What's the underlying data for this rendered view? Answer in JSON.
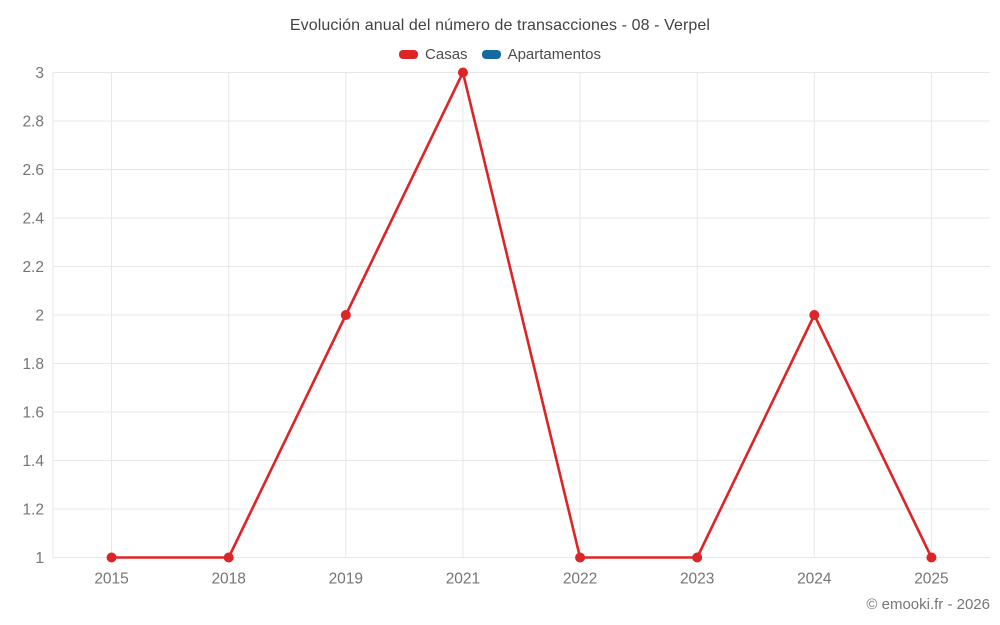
{
  "title": "Evolución anual del número de transacciones - 08 - Verpel",
  "copyright": "© emooki.fr - 2026",
  "colors": {
    "grid": "#e7e7e7",
    "axis_tick_label": "#757575",
    "title_text": "#424242",
    "legend_text": "#4c4c4c",
    "casas_red": "#dd2427",
    "apartamentos_blue": "#17699e"
  },
  "chart_data": {
    "type": "line",
    "title": "Evolución anual del número de transacciones - 08 - Verpel",
    "xlabel": "",
    "ylabel": "",
    "categories": [
      "2015",
      "2018",
      "2019",
      "2021",
      "2022",
      "2023",
      "2024",
      "2025"
    ],
    "series": [
      {
        "name": "Casas",
        "color": "#dd2427",
        "values": [
          1,
          1,
          2,
          3,
          1,
          1,
          2,
          1
        ]
      },
      {
        "name": "Apartamentos",
        "color": "#17699e",
        "values": []
      }
    ],
    "ylim": [
      1,
      3
    ],
    "ytick_labels_top_to_bottom": [
      "3",
      "2.8",
      "2.6",
      "2.4",
      "2.2",
      "2",
      "1.8",
      "1.6",
      "1.4",
      "1.2",
      "1"
    ],
    "grid": true,
    "legend_position": "top",
    "marker": "circle"
  }
}
